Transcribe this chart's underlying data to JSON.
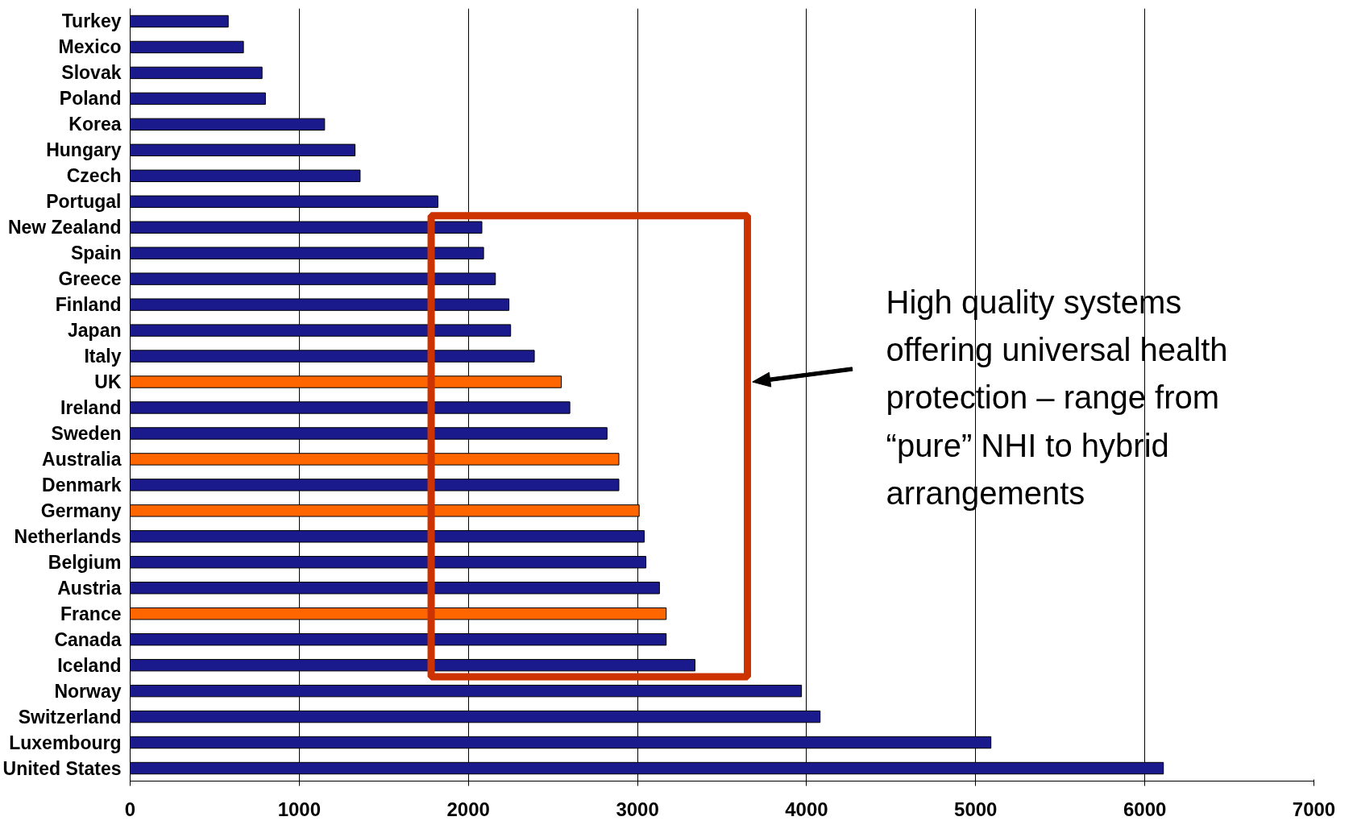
{
  "chart_data": {
    "type": "bar",
    "orientation": "horizontal",
    "categories": [
      "Turkey",
      "Mexico",
      "Slovak",
      "Poland",
      "Korea",
      "Hungary",
      "Czech",
      "Portugal",
      "New Zealand",
      "Spain",
      "Greece",
      "Finland",
      "Japan",
      "Italy",
      "UK",
      "Ireland",
      "Sweden",
      "Australia",
      "Denmark",
      "Germany",
      "Netherlands",
      "Belgium",
      "Austria",
      "France",
      "Canada",
      "Iceland",
      "Norway",
      "Switzerland",
      "Luxembourg",
      "United States"
    ],
    "values": [
      580,
      670,
      780,
      800,
      1150,
      1330,
      1360,
      1820,
      2080,
      2090,
      2160,
      2240,
      2250,
      2390,
      2550,
      2600,
      2820,
      2890,
      2890,
      3010,
      3040,
      3050,
      3130,
      3170,
      3170,
      3340,
      3970,
      4080,
      5090,
      6110
    ],
    "colors": [
      "#1a1a8c",
      "#1a1a8c",
      "#1a1a8c",
      "#1a1a8c",
      "#1a1a8c",
      "#1a1a8c",
      "#1a1a8c",
      "#1a1a8c",
      "#1a1a8c",
      "#1a1a8c",
      "#1a1a8c",
      "#1a1a8c",
      "#1a1a8c",
      "#1a1a8c",
      "#ff6600",
      "#1a1a8c",
      "#1a1a8c",
      "#ff6600",
      "#1a1a8c",
      "#ff6600",
      "#1a1a8c",
      "#1a1a8c",
      "#1a1a8c",
      "#ff6600",
      "#1a1a8c",
      "#1a1a8c",
      "#1a1a8c",
      "#1a1a8c",
      "#1a1a8c",
      "#1a1a8c"
    ],
    "xlim": [
      0,
      7000
    ],
    "xticks": [
      0,
      1000,
      2000,
      3000,
      4000,
      5000,
      6000,
      7000
    ],
    "grid": "x",
    "annotations": [
      "High quality systems offering universal health protection – range from “pure” NHI to hybrid arrangements"
    ]
  }
}
